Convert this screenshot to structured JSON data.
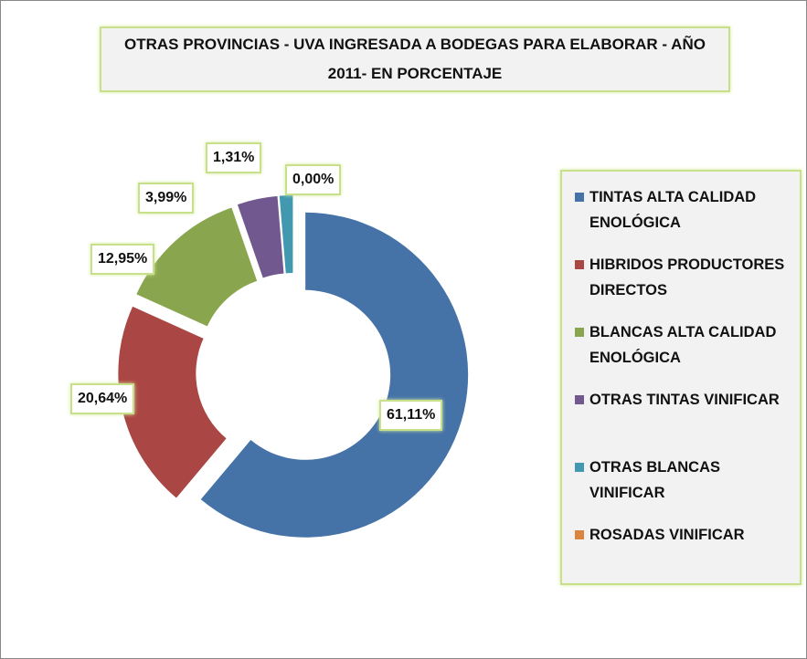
{
  "chart_data": {
    "type": "donut",
    "title": "OTRAS PROVINCIAS - UVA INGRESADA A BODEGAS PARA ELABORAR - AÑO 2011- EN PORCENTAJE",
    "categories": [
      "TINTAS ALTA CALIDAD ENOLÓGICA",
      "HIBRIDOS PRODUCTORES DIRECTOS",
      "BLANCAS ALTA CALIDAD ENOLÓGICA",
      "OTRAS TINTAS VINIFICAR",
      "OTRAS BLANCAS VINIFICAR",
      "ROSADAS  VINIFICAR"
    ],
    "values": [
      61.11,
      20.64,
      12.95,
      3.99,
      1.31,
      0.0
    ],
    "value_labels": [
      "61,11%",
      "20,64%",
      "12,95%",
      "3,99%",
      "1,31%",
      "0,00%"
    ],
    "colors": [
      "#4572a7",
      "#aa4643",
      "#89a54e",
      "#71588f",
      "#4198af",
      "#db843d"
    ],
    "legend": "right"
  }
}
